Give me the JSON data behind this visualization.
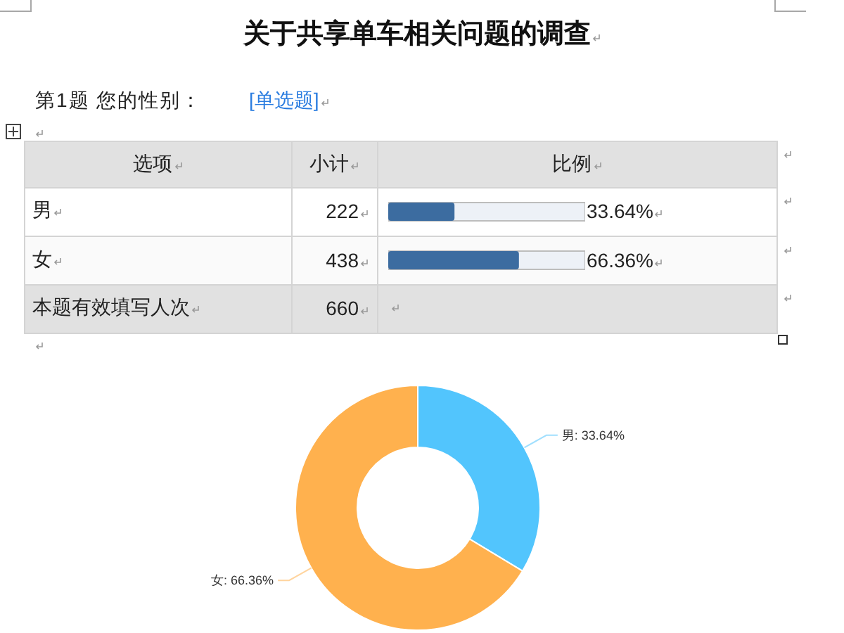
{
  "chart_data": [
    {
      "type": "bar",
      "title": "关于共享单车相关问题的调查",
      "subtitle": "第1题 您的性别：",
      "annotations": [
        "[单选题]",
        "选项",
        "小计",
        "比例",
        "222",
        "438",
        "本题有效填写人次",
        "660"
      ],
      "orientation": "horizontal",
      "categories": [
        "男",
        "女"
      ],
      "values": [
        33.64,
        66.36
      ],
      "color": "#3c6ca0",
      "xlim": [
        0,
        100
      ],
      "value_labels": [
        "33.64%",
        "66.36%"
      ],
      "tick_labels": "y"
    },
    {
      "type": "donut",
      "categories": [
        "男",
        "女"
      ],
      "values": [
        33.64,
        66.36
      ],
      "colors": [
        "#52c5fd",
        "#ffb14e"
      ],
      "value_labels": [
        "33.64%",
        "66.36%"
      ]
    }
  ]
}
